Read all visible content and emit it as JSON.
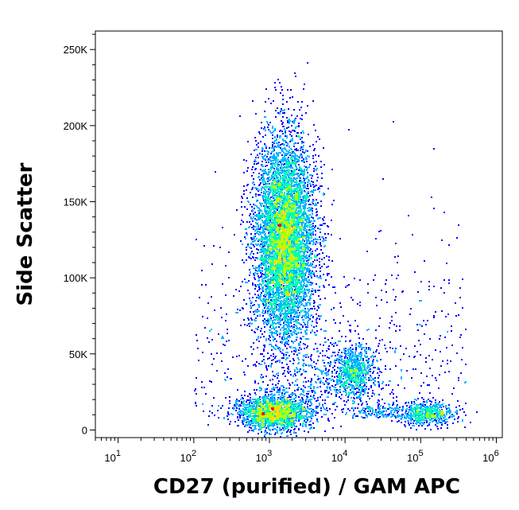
{
  "chart_data": {
    "type": "scatter",
    "style": "flow-cytometry pseudocolor density dot plot",
    "xlabel": "CD27 (purified) / GAM APC",
    "ylabel": "Side Scatter",
    "x_scale": "log",
    "xlim": [
      5,
      1200000
    ],
    "ylim": [
      -5000,
      262144
    ],
    "x_ticks": [
      {
        "value": 10,
        "base": "10",
        "exp": "1"
      },
      {
        "value": 100,
        "base": "10",
        "exp": "2"
      },
      {
        "value": 1000,
        "base": "10",
        "exp": "3"
      },
      {
        "value": 10000,
        "base": "10",
        "exp": "4"
      },
      {
        "value": 100000,
        "base": "10",
        "exp": "5"
      },
      {
        "value": 1000000,
        "base": "10",
        "exp": "6"
      }
    ],
    "y_ticks": [
      {
        "value": 0,
        "label": "0"
      },
      {
        "value": 50000,
        "label": "50K"
      },
      {
        "value": 100000,
        "label": "100K"
      },
      {
        "value": 150000,
        "label": "150K"
      },
      {
        "value": 200000,
        "label": "200K"
      },
      {
        "value": 250000,
        "label": "250K"
      }
    ],
    "density_colors": [
      "#0000ff",
      "#00b4ff",
      "#00ffb4",
      "#b4ff00",
      "#ffdc00",
      "#ff0000"
    ],
    "populations": [
      {
        "x_center": 1600,
        "y_center": 125000,
        "x_spread_decades": 0.2,
        "y_sd": 33000,
        "relative_size": 7000,
        "peak_density": "red"
      },
      {
        "x_center": 1100,
        "y_center": 11000,
        "x_spread_decades": 0.24,
        "y_sd": 5500,
        "relative_size": 1700,
        "peak_density": "red"
      },
      {
        "x_center": 13000,
        "y_center": 38000,
        "x_spread_decades": 0.13,
        "y_sd": 9000,
        "relative_size": 650,
        "peak_density": "green"
      },
      {
        "x_center": 120000,
        "y_center": 10000,
        "x_spread_decades": 0.2,
        "y_sd": 3500,
        "relative_size": 450,
        "peak_density": "green"
      }
    ]
  }
}
